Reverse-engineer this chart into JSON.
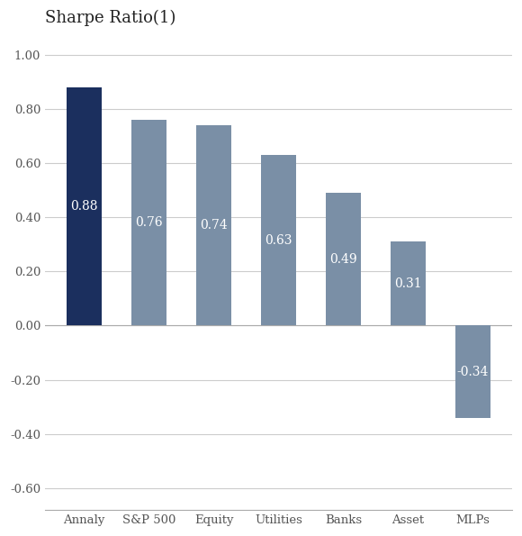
{
  "categories": [
    "Annaly",
    "S&P 500",
    "Equity",
    "Utilities",
    "Banks",
    "Asset",
    "MLPs"
  ],
  "values": [
    0.88,
    0.76,
    0.74,
    0.63,
    0.49,
    0.31,
    -0.34
  ],
  "bar_colors": [
    "#1b2f5e",
    "#7a8fa6",
    "#7a8fa6",
    "#7a8fa6",
    "#7a8fa6",
    "#7a8fa6",
    "#7a8fa6"
  ],
  "label_color": "#ffffff",
  "title_display": "Sharpe Ratio(1)",
  "title_superscript": "(1)",
  "ylim": [
    -0.68,
    1.08
  ],
  "yticks": [
    -0.6,
    -0.4,
    -0.2,
    0.0,
    0.2,
    0.4,
    0.6,
    0.8,
    1.0
  ],
  "ytick_labels": [
    "-0.60",
    "-0.40",
    "-0.20",
    "0.00",
    "0.20",
    "0.40",
    "0.60",
    "0.80",
    "1.00"
  ],
  "grid_color": "#cccccc",
  "background_color": "#ffffff",
  "bar_width": 0.55,
  "label_fontsize": 10,
  "tick_fontsize": 9.5,
  "title_fontsize": 13,
  "tick_color": "#555555",
  "spine_color": "#aaaaaa"
}
